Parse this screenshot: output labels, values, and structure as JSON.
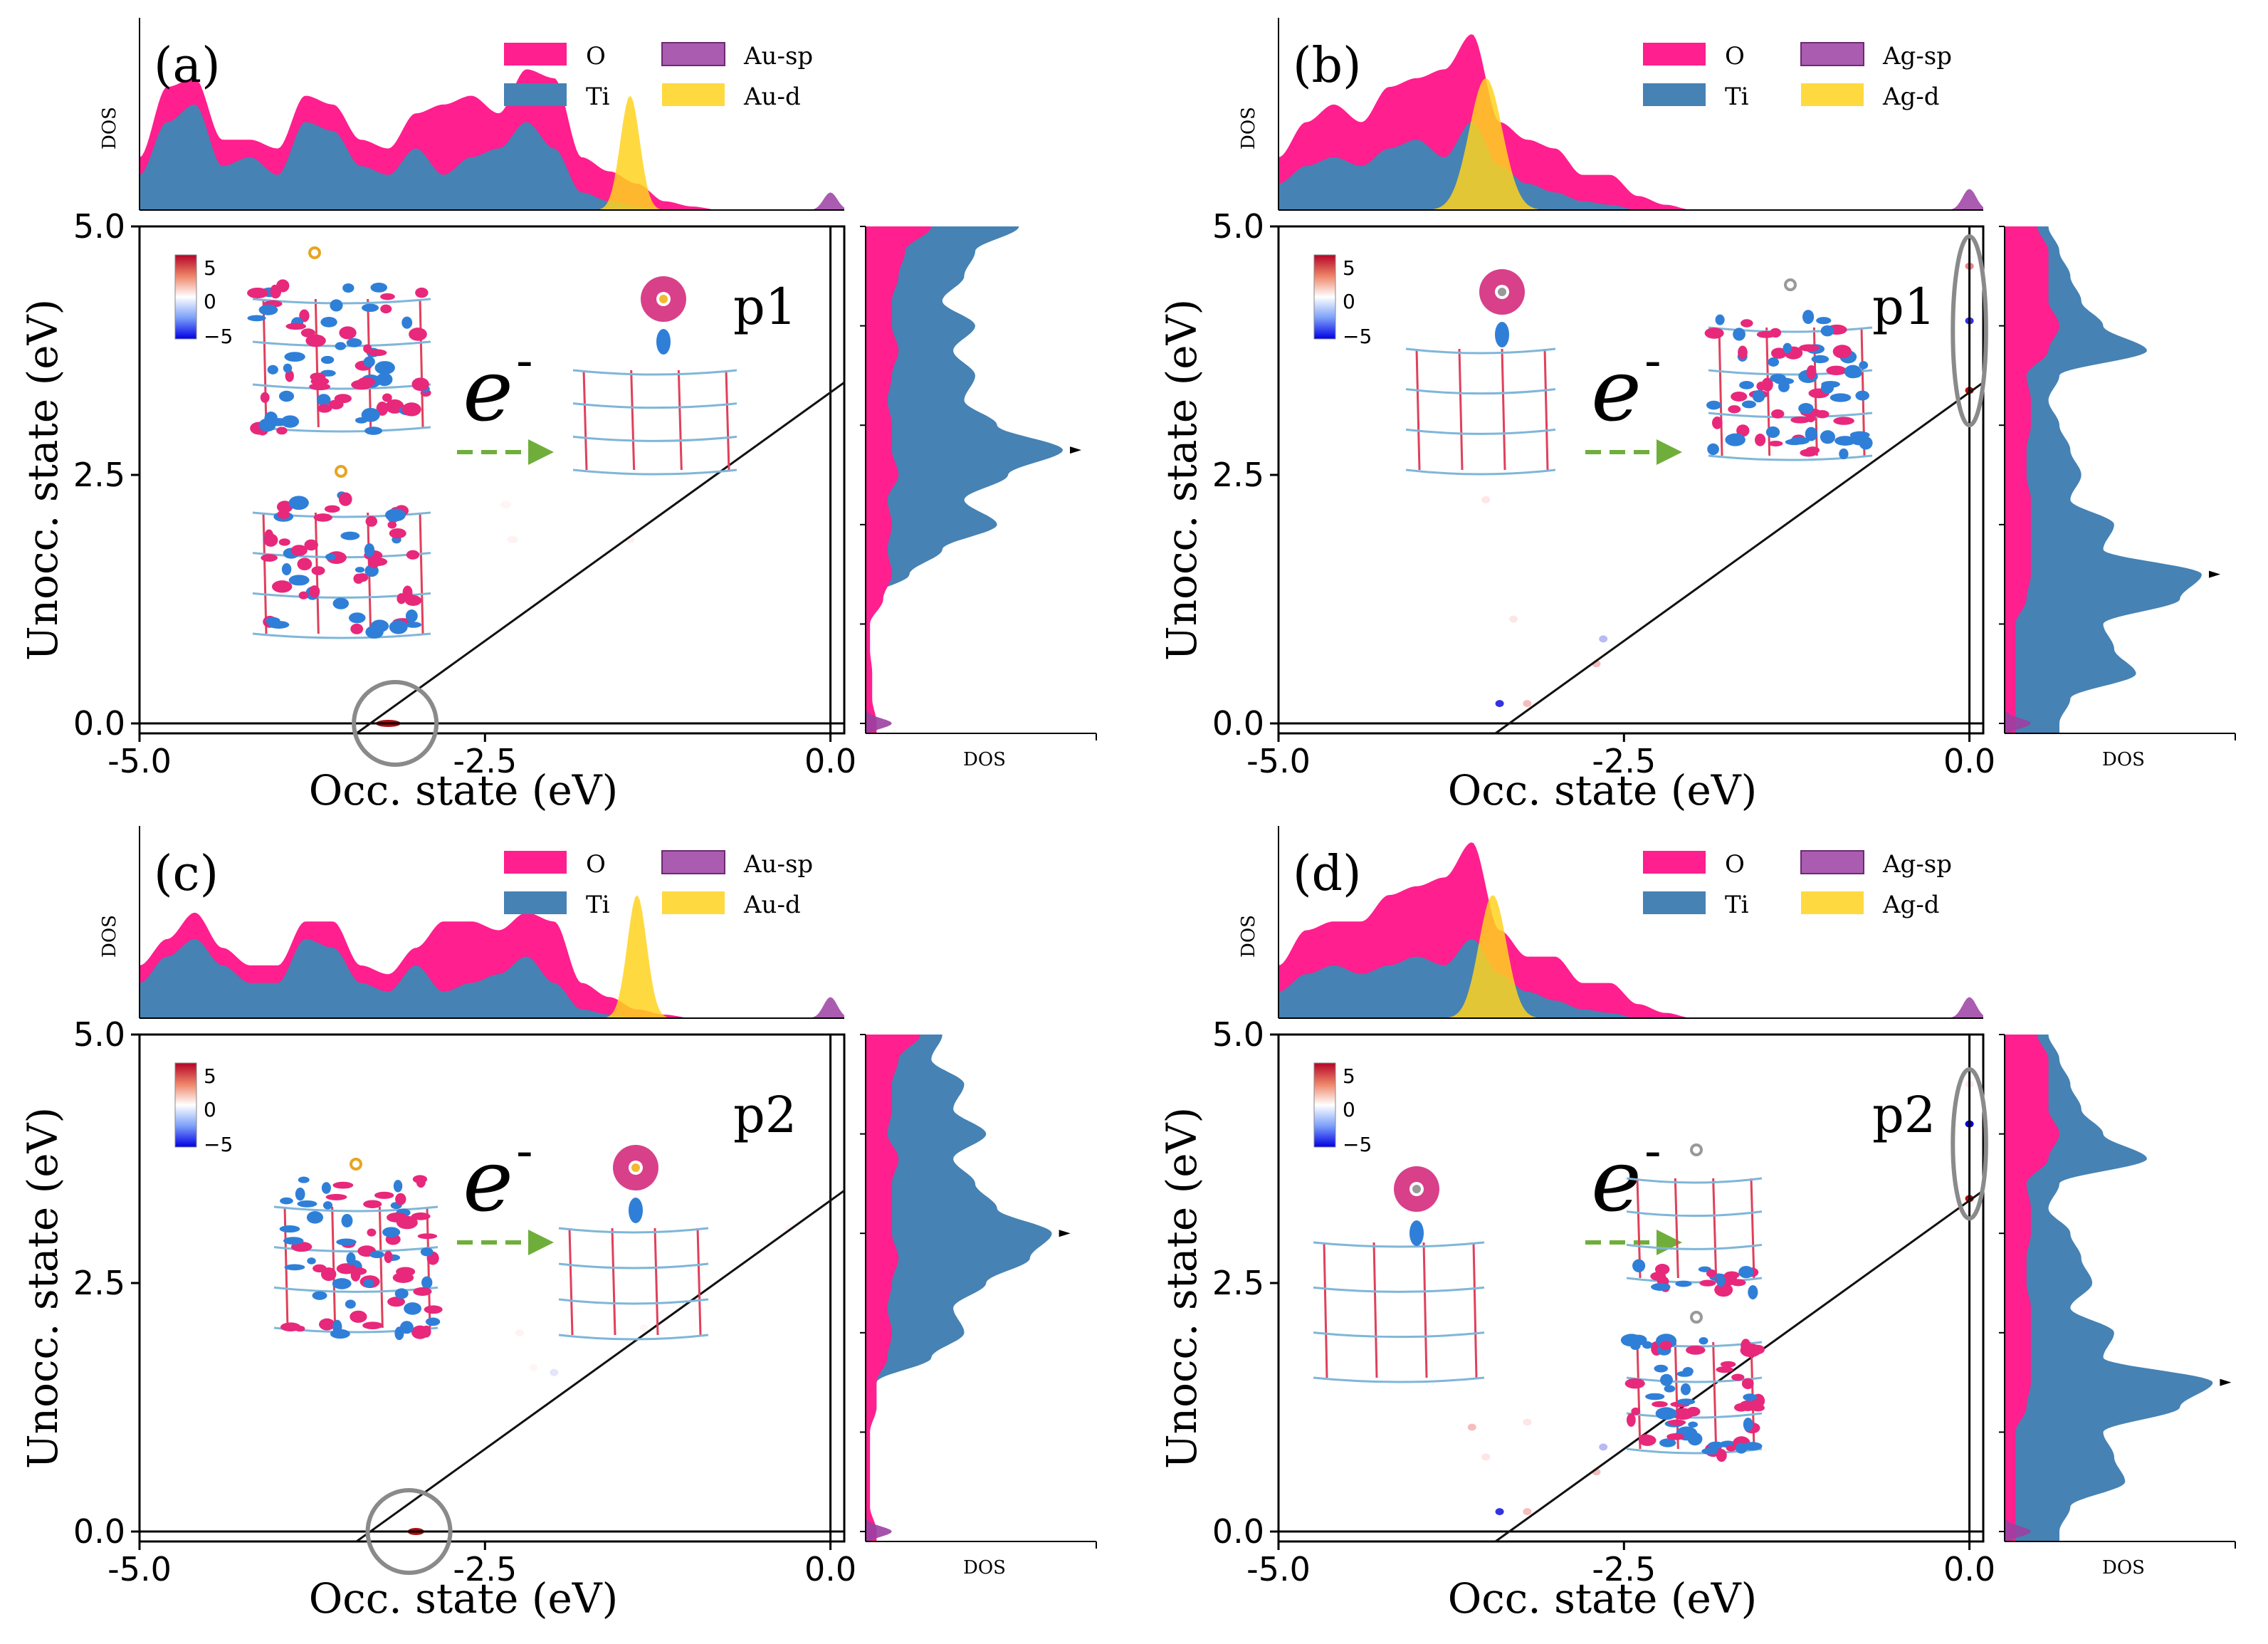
{
  "figure": {
    "description_free": true,
    "colors": {
      "O": "#ff1f8e",
      "Ti": "#4682b4",
      "sp": "#9b3fa2",
      "d": "#ffd21e",
      "arrow": "#6fae3b",
      "circle": "#8a8a8a",
      "line": "#111111"
    },
    "colorbar": {
      "ticks": [
        "5",
        "0",
        "−5"
      ],
      "cmap": "bwr"
    },
    "electron_label": "e",
    "electron_sup": "-"
  },
  "chart_data": [
    {
      "type": "heatmap",
      "panel_label": "(a)",
      "point_label": "p1",
      "title": "",
      "xlabel": "Occ. state (eV)",
      "ylabel": "Unocc. state (eV)",
      "xlim": [
        -5.0,
        0.1
      ],
      "ylim": [
        -0.1,
        5.0
      ],
      "xticks": [
        "-5.0",
        "-2.5",
        "0.0"
      ],
      "yticks": [
        "0.0",
        "2.5",
        "5.0"
      ],
      "top_ylabel": "DOS",
      "side_xlabel": "DOS",
      "legend": [
        "O",
        "Ti",
        "Au-sp",
        "Au-d"
      ],
      "diagonal": {
        "x0": -3.33,
        "slope": 1.0
      },
      "hot_spots": [
        {
          "x": -3.2,
          "y": 0.0,
          "v": 5,
          "w": 0.18,
          "h": 0.05
        },
        {
          "x": -2.35,
          "y": 2.2,
          "v": 0.5,
          "w": 0.08,
          "h": 0.05
        },
        {
          "x": -2.3,
          "y": 1.85,
          "v": 0.6,
          "w": 0.08,
          "h": 0.05
        },
        {
          "x": -1.45,
          "y": 1.85,
          "v": 0.7,
          "w": 0.06,
          "h": 0.05
        }
      ],
      "circle": {
        "x": -3.15,
        "y": 0.0
      },
      "top_dos": {
        "x": [
          -5.0,
          -4.8,
          -4.6,
          -4.4,
          -4.2,
          -4.0,
          -3.8,
          -3.6,
          -3.4,
          -3.2,
          -3.0,
          -2.8,
          -2.6,
          -2.4,
          -2.2,
          -2.0,
          -1.8,
          -1.6,
          -1.4,
          -1.2,
          -1.0,
          -0.8,
          -0.6,
          -0.4,
          -0.2,
          0.0,
          0.1
        ],
        "O": [
          0.3,
          0.7,
          0.75,
          0.4,
          0.4,
          0.35,
          0.65,
          0.6,
          0.4,
          0.35,
          0.55,
          0.6,
          0.65,
          0.55,
          0.8,
          0.75,
          0.3,
          0.22,
          0.15,
          0.05,
          0.02,
          0.0,
          0.0,
          0.0,
          0.0,
          0.0,
          0.0
        ],
        "Ti": [
          0.2,
          0.5,
          0.6,
          0.25,
          0.3,
          0.2,
          0.5,
          0.45,
          0.25,
          0.2,
          0.35,
          0.2,
          0.3,
          0.35,
          0.5,
          0.35,
          0.1,
          0.05,
          0.02,
          0.0,
          0.0,
          0.0,
          0.0,
          0.0,
          0.0,
          0.0,
          0.0
        ],
        "d_peak": {
          "center": -1.45,
          "height": 0.65,
          "width": 0.07
        },
        "sp_peak": {
          "center": 0.0,
          "height": 0.1,
          "width": 0.05
        }
      },
      "side_dos": {
        "y": [
          0.0,
          0.25,
          0.5,
          0.75,
          1.0,
          1.25,
          1.5,
          1.75,
          2.0,
          2.25,
          2.5,
          2.75,
          3.0,
          3.25,
          3.5,
          3.75,
          4.0,
          4.25,
          4.5,
          4.75,
          5.0
        ],
        "O": [
          0.05,
          0.03,
          0.03,
          0.02,
          0.02,
          0.08,
          0.12,
          0.1,
          0.12,
          0.1,
          0.15,
          0.12,
          0.12,
          0.1,
          0.12,
          0.15,
          0.12,
          0.12,
          0.15,
          0.18,
          0.3
        ],
        "Ti": [
          0.0,
          0.0,
          0.0,
          0.0,
          0.0,
          0.0,
          0.2,
          0.35,
          0.6,
          0.45,
          0.65,
          0.9,
          0.6,
          0.45,
          0.5,
          0.4,
          0.5,
          0.35,
          0.45,
          0.5,
          0.7
        ],
        "sp_peak": {
          "center": 0.0,
          "height": 0.12,
          "width": 0.05
        }
      }
    },
    {
      "type": "heatmap",
      "panel_label": "(b)",
      "point_label": "p1",
      "title": "",
      "xlabel": "Occ. state (eV)",
      "ylabel": "Unocc. state (eV)",
      "xlim": [
        -5.0,
        0.1
      ],
      "ylim": [
        -0.1,
        5.0
      ],
      "xticks": [
        "-5.0",
        "-2.5",
        "0.0"
      ],
      "yticks": [
        "0.0",
        "2.5",
        "5.0"
      ],
      "top_ylabel": "DOS",
      "side_xlabel": "DOS",
      "legend": [
        "O",
        "Ti",
        "Ag-sp",
        "Ag-d"
      ],
      "diagonal": {
        "x0": -3.33,
        "slope": 1.0
      },
      "hot_spots": [
        {
          "x": 0.0,
          "y": 3.35,
          "v": 5,
          "w": 0.06,
          "h": 0.06
        },
        {
          "x": 0.0,
          "y": 4.05,
          "v": -4,
          "w": 0.05,
          "h": 0.04
        },
        {
          "x": 0.0,
          "y": 4.6,
          "v": 3,
          "w": 0.04,
          "h": 0.04
        },
        {
          "x": -3.4,
          "y": 0.2,
          "v": -4,
          "w": 0.05,
          "h": 0.04
        },
        {
          "x": -3.2,
          "y": 0.2,
          "v": 2,
          "w": 0.04,
          "h": 0.04
        },
        {
          "x": -2.7,
          "y": 0.6,
          "v": 2,
          "w": 0.04,
          "h": 0.04
        },
        {
          "x": -2.65,
          "y": 0.85,
          "v": -2,
          "w": 0.03,
          "h": 0.03
        },
        {
          "x": -3.5,
          "y": 2.25,
          "v": 1,
          "w": 0.03,
          "h": 0.03
        },
        {
          "x": -3.3,
          "y": 1.05,
          "v": 1,
          "w": 0.04,
          "h": 0.03
        }
      ],
      "circle": {
        "x": 0.0,
        "y": 3.95,
        "rx": 0.12,
        "ry": 0.95
      },
      "top_dos": {
        "x": [
          -5.0,
          -4.8,
          -4.6,
          -4.4,
          -4.2,
          -4.0,
          -3.8,
          -3.6,
          -3.4,
          -3.2,
          -3.0,
          -2.8,
          -2.6,
          -2.4,
          -2.2,
          -2.0,
          -1.8,
          -1.6,
          -1.4,
          -1.2,
          -1.0,
          -0.8,
          -0.6,
          -0.4,
          -0.2,
          0.0,
          0.1
        ],
        "O": [
          0.3,
          0.5,
          0.6,
          0.5,
          0.7,
          0.75,
          0.8,
          1.0,
          0.5,
          0.4,
          0.35,
          0.2,
          0.2,
          0.08,
          0.03,
          0.0,
          0.0,
          0.0,
          0.0,
          0.0,
          0.0,
          0.0,
          0.0,
          0.0,
          0.0,
          0.0,
          0.0
        ],
        "Ti": [
          0.15,
          0.25,
          0.3,
          0.25,
          0.35,
          0.4,
          0.3,
          0.5,
          0.25,
          0.15,
          0.1,
          0.05,
          0.03,
          0.0,
          0.0,
          0.0,
          0.0,
          0.0,
          0.0,
          0.0,
          0.0,
          0.0,
          0.0,
          0.0,
          0.0,
          0.0,
          0.0
        ],
        "d_peak": {
          "center": -3.5,
          "height": 0.75,
          "width": 0.12
        },
        "sp_peak": {
          "center": 0.0,
          "height": 0.12,
          "width": 0.05
        }
      },
      "side_dos": {
        "y": [
          0.0,
          0.25,
          0.5,
          0.75,
          1.0,
          1.25,
          1.5,
          1.75,
          2.0,
          2.25,
          2.5,
          2.75,
          3.0,
          3.25,
          3.5,
          3.75,
          4.0,
          4.25,
          4.5,
          4.75,
          5.0
        ],
        "O": [
          0.05,
          0.05,
          0.05,
          0.05,
          0.05,
          0.1,
          0.12,
          0.12,
          0.12,
          0.12,
          0.1,
          0.1,
          0.12,
          0.12,
          0.1,
          0.2,
          0.25,
          0.2,
          0.2,
          0.2,
          0.15
        ],
        "Ti": [
          0.25,
          0.3,
          0.6,
          0.5,
          0.45,
          0.8,
          0.9,
          0.45,
          0.5,
          0.3,
          0.35,
          0.3,
          0.25,
          0.2,
          0.25,
          0.65,
          0.45,
          0.35,
          0.3,
          0.25,
          0.2
        ],
        "sp_peak": {
          "center": 0.0,
          "height": 0.12,
          "width": 0.05
        }
      }
    },
    {
      "type": "heatmap",
      "panel_label": "(c)",
      "point_label": "p2",
      "title": "",
      "xlabel": "Occ. state (eV)",
      "ylabel": "Unocc. state (eV)",
      "xlim": [
        -5.0,
        0.1
      ],
      "ylim": [
        -0.1,
        5.0
      ],
      "xticks": [
        "-5.0",
        "-2.5",
        "0.0"
      ],
      "yticks": [
        "0.0",
        "2.5",
        "5.0"
      ],
      "top_ylabel": "DOS",
      "side_xlabel": "DOS",
      "legend": [
        "O",
        "Ti",
        "Au-sp",
        "Au-d"
      ],
      "diagonal": {
        "x0": -3.33,
        "slope": 1.0
      },
      "hot_spots": [
        {
          "x": -3.0,
          "y": 0.0,
          "v": 5,
          "w": 0.12,
          "h": 0.05
        },
        {
          "x": -2.25,
          "y": 2.0,
          "v": 0.6,
          "w": 0.06,
          "h": 0.04
        },
        {
          "x": -2.15,
          "y": 1.65,
          "v": 0.5,
          "w": 0.06,
          "h": 0.04
        },
        {
          "x": -2.0,
          "y": 1.6,
          "v": -1,
          "w": 0.03,
          "h": 0.03
        },
        {
          "x": -1.35,
          "y": 2.05,
          "v": 0.5,
          "w": 0.05,
          "h": 0.04
        },
        {
          "x": -0.3,
          "y": 3.05,
          "v": 0.5,
          "w": 0.05,
          "h": 0.04
        }
      ],
      "circle": {
        "x": -3.05,
        "y": 0.0
      },
      "top_dos": {
        "x": [
          -5.0,
          -4.8,
          -4.6,
          -4.4,
          -4.2,
          -4.0,
          -3.8,
          -3.6,
          -3.4,
          -3.2,
          -3.0,
          -2.8,
          -2.6,
          -2.4,
          -2.2,
          -2.0,
          -1.8,
          -1.6,
          -1.4,
          -1.2,
          -1.0,
          -0.8,
          -0.6,
          -0.4,
          -0.2,
          0.0,
          0.1
        ],
        "O": [
          0.3,
          0.45,
          0.6,
          0.4,
          0.3,
          0.3,
          0.55,
          0.55,
          0.3,
          0.25,
          0.4,
          0.55,
          0.55,
          0.5,
          0.6,
          0.55,
          0.2,
          0.12,
          0.05,
          0.02,
          0.0,
          0.0,
          0.0,
          0.0,
          0.0,
          0.0,
          0.0
        ],
        "Ti": [
          0.2,
          0.35,
          0.45,
          0.3,
          0.2,
          0.2,
          0.45,
          0.4,
          0.2,
          0.15,
          0.3,
          0.15,
          0.2,
          0.25,
          0.35,
          0.2,
          0.05,
          0.02,
          0.0,
          0.0,
          0.0,
          0.0,
          0.0,
          0.0,
          0.0,
          0.0,
          0.0
        ],
        "d_peak": {
          "center": -1.4,
          "height": 0.7,
          "width": 0.07
        },
        "sp_peak": {
          "center": 0.0,
          "height": 0.12,
          "width": 0.05
        }
      },
      "side_dos": {
        "y": [
          0.0,
          0.25,
          0.5,
          0.75,
          1.0,
          1.25,
          1.5,
          1.75,
          2.0,
          2.25,
          2.5,
          2.75,
          3.0,
          3.25,
          3.5,
          3.75,
          4.0,
          4.25,
          4.5,
          4.75,
          5.0
        ],
        "O": [
          0.05,
          0.02,
          0.02,
          0.02,
          0.02,
          0.05,
          0.05,
          0.1,
          0.12,
          0.1,
          0.12,
          0.15,
          0.12,
          0.12,
          0.12,
          0.15,
          0.1,
          0.12,
          0.12,
          0.15,
          0.25
        ],
        "Ti": [
          0.0,
          0.0,
          0.0,
          0.0,
          0.0,
          0.0,
          0.05,
          0.3,
          0.45,
          0.4,
          0.55,
          0.75,
          0.85,
          0.6,
          0.5,
          0.4,
          0.55,
          0.4,
          0.45,
          0.3,
          0.35
        ],
        "sp_peak": {
          "center": 0.0,
          "height": 0.12,
          "width": 0.05
        }
      }
    },
    {
      "type": "heatmap",
      "panel_label": "(d)",
      "point_label": "p2",
      "title": "",
      "xlabel": "Occ. state (eV)",
      "ylabel": "Unocc. state (eV)",
      "xlim": [
        -5.0,
        0.1
      ],
      "ylim": [
        -0.1,
        5.0
      ],
      "xticks": [
        "-5.0",
        "-2.5",
        "0.0"
      ],
      "yticks": [
        "0.0",
        "2.5",
        "5.0"
      ],
      "top_ylabel": "DOS",
      "side_xlabel": "DOS",
      "legend": [
        "O",
        "Ti",
        "Ag-sp",
        "Ag-d"
      ],
      "diagonal": {
        "x0": -3.33,
        "slope": 1.0
      },
      "hot_spots": [
        {
          "x": 0.0,
          "y": 3.35,
          "v": 5,
          "w": 0.06,
          "h": 0.06
        },
        {
          "x": 0.0,
          "y": 4.1,
          "v": -5,
          "w": 0.06,
          "h": 0.05
        },
        {
          "x": 0.0,
          "y": 4.5,
          "v": 1,
          "w": 0.03,
          "h": 0.03
        },
        {
          "x": -3.4,
          "y": 0.2,
          "v": -4,
          "w": 0.05,
          "h": 0.04
        },
        {
          "x": -3.2,
          "y": 0.2,
          "v": 2,
          "w": 0.04,
          "h": 0.04
        },
        {
          "x": -2.7,
          "y": 0.6,
          "v": 2,
          "w": 0.04,
          "h": 0.04
        },
        {
          "x": -2.65,
          "y": 0.85,
          "v": -2,
          "w": 0.03,
          "h": 0.03
        },
        {
          "x": -3.6,
          "y": 1.05,
          "v": 2,
          "w": 0.04,
          "h": 0.03
        },
        {
          "x": -3.2,
          "y": 1.1,
          "v": 1,
          "w": 0.04,
          "h": 0.03
        },
        {
          "x": -3.5,
          "y": 0.75,
          "v": 1,
          "w": 0.03,
          "h": 0.03
        }
      ],
      "circle": {
        "x": 0.0,
        "y": 3.9,
        "rx": 0.12,
        "ry": 0.75
      },
      "top_dos": {
        "x": [
          -5.0,
          -4.8,
          -4.6,
          -4.4,
          -4.2,
          -4.0,
          -3.8,
          -3.6,
          -3.4,
          -3.2,
          -3.0,
          -2.8,
          -2.6,
          -2.4,
          -2.2,
          -2.0,
          -1.8,
          -1.6,
          -1.4,
          -1.2,
          -1.0,
          -0.8,
          -0.6,
          -0.4,
          -0.2,
          0.0,
          0.1
        ],
        "O": [
          0.3,
          0.5,
          0.55,
          0.55,
          0.7,
          0.75,
          0.8,
          1.0,
          0.5,
          0.35,
          0.35,
          0.2,
          0.2,
          0.08,
          0.03,
          0.0,
          0.0,
          0.0,
          0.0,
          0.0,
          0.0,
          0.0,
          0.0,
          0.0,
          0.0,
          0.0,
          0.0
        ],
        "Ti": [
          0.15,
          0.25,
          0.3,
          0.25,
          0.3,
          0.35,
          0.3,
          0.45,
          0.25,
          0.15,
          0.1,
          0.05,
          0.03,
          0.0,
          0.0,
          0.0,
          0.0,
          0.0,
          0.0,
          0.0,
          0.0,
          0.0,
          0.0,
          0.0,
          0.0,
          0.0,
          0.0
        ],
        "d_peak": {
          "center": -3.45,
          "height": 0.7,
          "width": 0.1
        },
        "sp_peak": {
          "center": 0.0,
          "height": 0.12,
          "width": 0.05
        }
      },
      "side_dos": {
        "y": [
          0.0,
          0.25,
          0.5,
          0.75,
          1.0,
          1.25,
          1.5,
          1.75,
          2.0,
          2.25,
          2.5,
          2.75,
          3.0,
          3.25,
          3.5,
          3.75,
          4.0,
          4.25,
          4.5,
          4.75,
          5.0
        ],
        "O": [
          0.05,
          0.05,
          0.05,
          0.05,
          0.05,
          0.1,
          0.12,
          0.12,
          0.12,
          0.12,
          0.1,
          0.1,
          0.12,
          0.12,
          0.1,
          0.2,
          0.25,
          0.2,
          0.2,
          0.2,
          0.15
        ],
        "Ti": [
          0.25,
          0.3,
          0.55,
          0.5,
          0.45,
          0.8,
          0.95,
          0.45,
          0.5,
          0.3,
          0.4,
          0.35,
          0.3,
          0.2,
          0.25,
          0.65,
          0.45,
          0.35,
          0.3,
          0.25,
          0.2
        ],
        "sp_peak": {
          "center": 0.0,
          "height": 0.12,
          "width": 0.05
        }
      }
    }
  ]
}
